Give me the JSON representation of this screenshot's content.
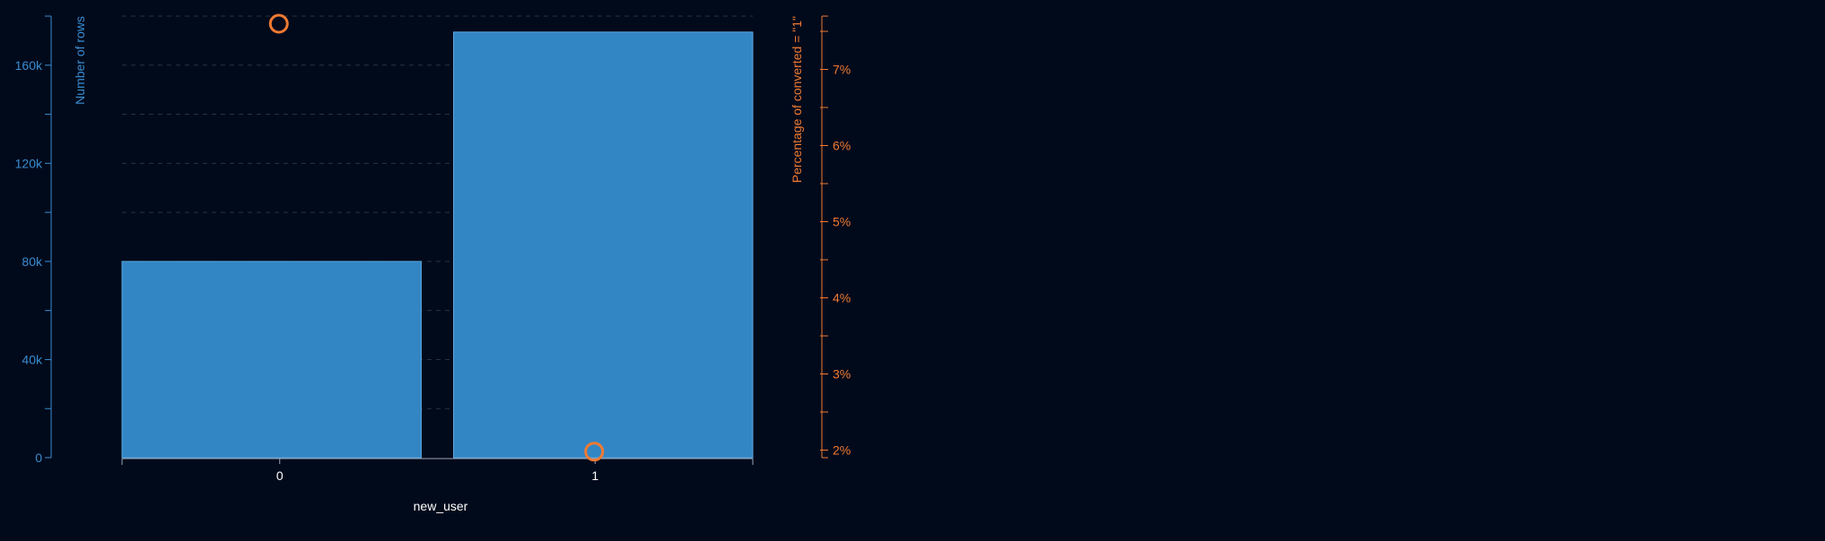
{
  "chart_data": {
    "type": "bar",
    "categories": [
      "0",
      "1"
    ],
    "series": [
      {
        "axis": "left",
        "kind": "bar",
        "values": [
          80000,
          173500
        ],
        "color": "#3386c4"
      },
      {
        "axis": "right",
        "kind": "point",
        "values": [
          7.6,
          1.98
        ],
        "color": "#f07a32"
      }
    ],
    "xlabel": "new_user",
    "ylabel_left": "Number of rows",
    "ylabel_right": "Percentage of converted = \"1\"",
    "ylim_left": [
      0,
      180000
    ],
    "yticks_left": [
      0,
      40000,
      80000,
      120000,
      160000
    ],
    "yticks_left_labels": [
      "0",
      "40k",
      "80k",
      "120k",
      "160k"
    ],
    "ylim_right": [
      1.9,
      7.7
    ],
    "yticks_right": [
      2,
      3,
      4,
      5,
      6,
      7
    ],
    "yticks_right_labels": [
      "2%",
      "3%",
      "4%",
      "5%",
      "6%",
      "7%"
    ],
    "grid": true,
    "colors": {
      "background": "#010a1b",
      "left_axis": "#3a8cd0",
      "right_axis": "#f07a32",
      "bar_fill": "#3386c4",
      "bar_stroke": "#5aa4dc",
      "grid": "#2a3342",
      "x_text": "#ffffff"
    }
  }
}
